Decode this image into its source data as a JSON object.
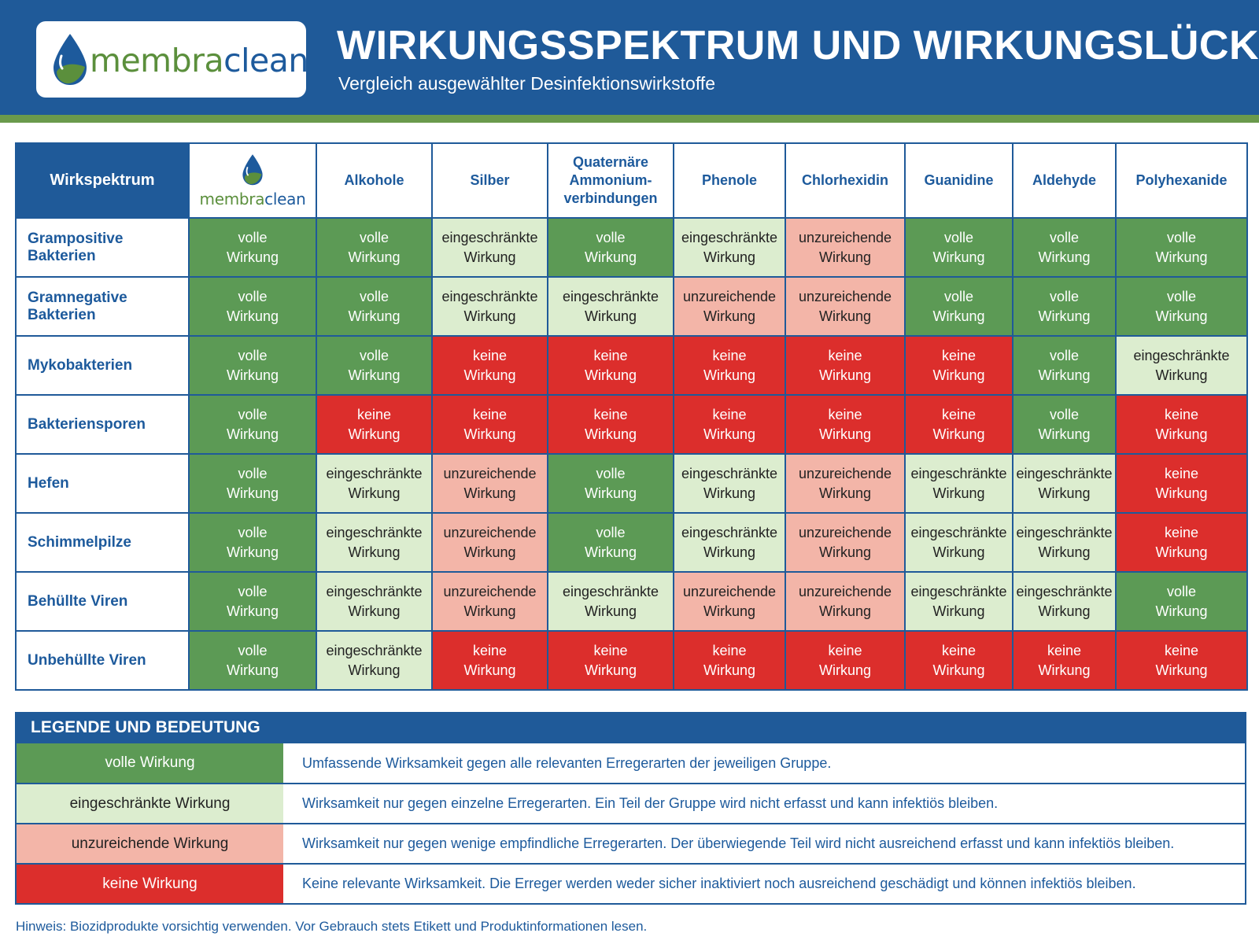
{
  "header": {
    "logo": {
      "part1": "membra",
      "part2": "clean"
    },
    "title": "WIRKUNGSSPEKTRUM UND WIRKUNGSLÜCKEN",
    "subtitle": "Vergleich ausgewählter Desinfektionswirkstoffe"
  },
  "matrix": {
    "corner_label": "Wirkspektrum",
    "columns": [
      {
        "key": "membraclean",
        "label_part1": "membra",
        "label_part2": "clean",
        "is_logo": true
      },
      {
        "key": "alkohole",
        "label": "Alkohole"
      },
      {
        "key": "silber",
        "label": "Silber"
      },
      {
        "key": "quats",
        "label_lines": [
          "Quaternäre",
          "Ammonium-",
          "verbindungen"
        ]
      },
      {
        "key": "phenole",
        "label": "Phenole"
      },
      {
        "key": "chlorhexidin",
        "label": "Chlorhexidin"
      },
      {
        "key": "guanidine",
        "label": "Guanidine"
      },
      {
        "key": "aldehyde",
        "label": "Aldehyde"
      },
      {
        "key": "polyhexanide",
        "label": "Polyhexanide"
      }
    ],
    "rows": [
      {
        "label": "Grampositive Bakterien",
        "levels": [
          "full",
          "full",
          "limited",
          "full",
          "limited",
          "insufficient",
          "full",
          "full",
          "full"
        ]
      },
      {
        "label": "Gramnegative Bakterien",
        "levels": [
          "full",
          "full",
          "limited",
          "limited",
          "insufficient",
          "insufficient",
          "full",
          "full",
          "full"
        ]
      },
      {
        "label": "Mykobakterien",
        "levels": [
          "full",
          "full",
          "none",
          "none",
          "none",
          "none",
          "none",
          "full",
          "limited"
        ]
      },
      {
        "label": "Bakteriensporen",
        "levels": [
          "full",
          "none",
          "none",
          "none",
          "none",
          "none",
          "none",
          "full",
          "none"
        ]
      },
      {
        "label": "Hefen",
        "levels": [
          "full",
          "limited",
          "insufficient",
          "full",
          "limited",
          "insufficient",
          "limited",
          "limited",
          "none"
        ]
      },
      {
        "label": "Schimmelpilze",
        "levels": [
          "full",
          "limited",
          "insufficient",
          "full",
          "limited",
          "insufficient",
          "limited",
          "limited",
          "none"
        ]
      },
      {
        "label": "Behüllte Viren",
        "levels": [
          "full",
          "limited",
          "insufficient",
          "limited",
          "insufficient",
          "insufficient",
          "limited",
          "limited",
          "full"
        ]
      },
      {
        "label": "Unbehüllte Viren",
        "levels": [
          "full",
          "limited",
          "none",
          "none",
          "none",
          "none",
          "none",
          "none",
          "none"
        ]
      }
    ],
    "level_labels": {
      "full": [
        "volle",
        "Wirkung"
      ],
      "limited": [
        "eingeschränkte",
        "Wirkung"
      ],
      "insufficient": [
        "unzureichende",
        "Wirkung"
      ],
      "none": [
        "keine",
        "Wirkung"
      ]
    }
  },
  "legend": {
    "title": "LEGENDE UND BEDEUTUNG",
    "items": [
      {
        "level": "full",
        "label": "volle Wirkung",
        "description": "Umfassende Wirksamkeit gegen alle relevanten Erregerarten der jeweiligen Gruppe."
      },
      {
        "level": "limited",
        "label": "eingeschränkte Wirkung",
        "description": "Wirksamkeit nur gegen einzelne Erregerarten. Ein Teil der Gruppe wird nicht erfasst und kann infektiös bleiben."
      },
      {
        "level": "insufficient",
        "label": "unzureichende Wirkung",
        "description": "Wirksamkeit nur gegen wenige empfindliche Erregerarten. Der überwiegende Teil wird nicht ausreichend erfasst und kann infektiös bleiben."
      },
      {
        "level": "none",
        "label": "keine Wirkung",
        "description": "Keine relevante Wirksamkeit. Die Erreger werden weder sicher inaktiviert noch ausreichend geschädigt und können infektiös bleiben."
      }
    ]
  },
  "note": "Hinweis: Biozidprodukte vorsichtig verwenden. Vor Gebrauch stets Etikett und Produktinformationen lesen.",
  "colors": {
    "brand_blue": "#1f5a99",
    "brand_green": "#5b8f3c",
    "full": "#5c9a55",
    "limited": "#dcedcf",
    "insufficient": "#f3b5a8",
    "none": "#dc2e2c"
  }
}
